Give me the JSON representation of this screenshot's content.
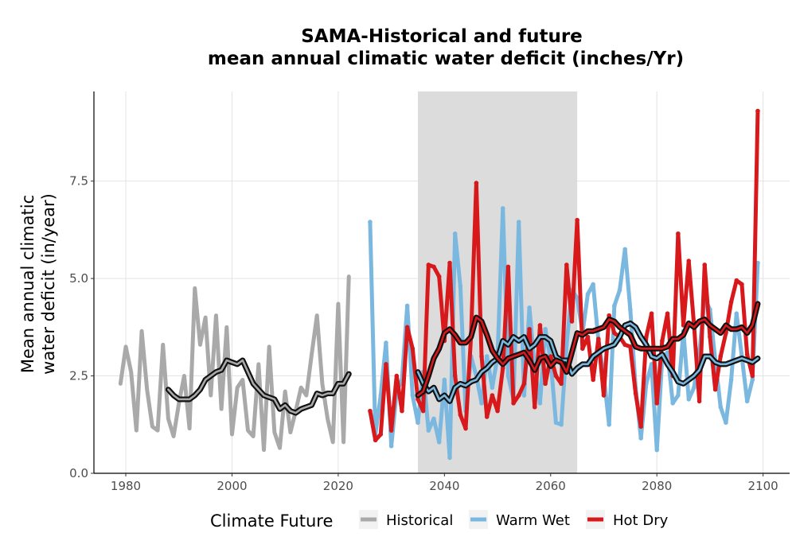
{
  "chart_data": {
    "type": "line",
    "title": [
      "SAMA-Historical and future",
      "mean annual climatic water deficit (inches/Yr)"
    ],
    "xlabel": "",
    "ylabel": [
      "Mean annual climatic",
      "water deficit (in/year)"
    ],
    "xlim": [
      1974,
      2105
    ],
    "ylim": [
      0,
      9.8
    ],
    "xticks": [
      1980,
      2000,
      2020,
      2040,
      2060,
      2080,
      2100
    ],
    "xtick_labels": [
      "1980",
      "2000",
      "2020",
      "2040",
      "2060",
      "2080",
      "2100"
    ],
    "yticks": [
      0,
      2.5,
      5,
      7.5
    ],
    "ytick_labels": [
      "0.0",
      "2.5",
      "5.0",
      "7.5"
    ],
    "grid": true,
    "shaded_band": {
      "x_start": 2035,
      "x_end": 2065,
      "color": "#dcdcdc"
    },
    "legend": {
      "title": "Climate Future",
      "placement": "bottom",
      "entries": [
        {
          "label": "Historical",
          "color": "#a9a9a9"
        },
        {
          "label": "Warm Wet",
          "color": "#7bb8df"
        },
        {
          "label": "Hot Dry",
          "color": "#d7191c"
        }
      ]
    },
    "series": [
      {
        "name": "Historical",
        "color": "#a9a9a9",
        "x": [
          1979,
          1980,
          1981,
          1982,
          1983,
          1984,
          1985,
          1986,
          1987,
          1988,
          1989,
          1990,
          1991,
          1992,
          1993,
          1994,
          1995,
          1996,
          1997,
          1998,
          1999,
          2000,
          2001,
          2002,
          2003,
          2004,
          2005,
          2006,
          2007,
          2008,
          2009,
          2010,
          2011,
          2012,
          2013,
          2014,
          2015,
          2016,
          2017,
          2018,
          2019,
          2020,
          2021,
          2022
        ],
        "values": [
          2.3,
          3.25,
          2.6,
          1.1,
          3.65,
          2.15,
          1.2,
          1.1,
          3.3,
          1.4,
          0.95,
          1.8,
          2.5,
          1.15,
          4.75,
          3.3,
          4.0,
          2.0,
          4.05,
          1.65,
          3.75,
          1.0,
          2.2,
          2.4,
          1.1,
          0.95,
          2.8,
          0.6,
          3.25,
          1.05,
          0.65,
          2.1,
          1.05,
          1.6,
          2.2,
          2.0,
          3.05,
          4.05,
          2.3,
          1.4,
          0.8,
          4.35,
          0.8,
          5.05
        ]
      },
      {
        "name": "Historical moving average",
        "color": "#a9a9a9",
        "x": [
          1988,
          1989,
          1990,
          1991,
          1992,
          1993,
          1994,
          1995,
          1996,
          1997,
          1998,
          1999,
          2000,
          2001,
          2002,
          2003,
          2004,
          2005,
          2006,
          2007,
          2008,
          2009,
          2010,
          2011,
          2012,
          2013,
          2014,
          2015,
          2016,
          2017,
          2018,
          2019,
          2020,
          2021,
          2022
        ],
        "values": [
          2.15,
          2.0,
          1.9,
          1.9,
          1.9,
          2.0,
          2.15,
          2.4,
          2.5,
          2.6,
          2.65,
          2.9,
          2.85,
          2.8,
          2.9,
          2.6,
          2.3,
          2.15,
          2.0,
          1.95,
          1.9,
          1.65,
          1.75,
          1.6,
          1.55,
          1.65,
          1.7,
          1.75,
          2.05,
          2.0,
          2.05,
          2.05,
          2.3,
          2.3,
          2.55
        ]
      },
      {
        "name": "Warm Wet",
        "color": "#7bb8df",
        "x": [
          2026,
          2027,
          2028,
          2029,
          2030,
          2031,
          2032,
          2033,
          2034,
          2035,
          2036,
          2037,
          2038,
          2039,
          2040,
          2041,
          2042,
          2043,
          2044,
          2045,
          2046,
          2047,
          2048,
          2049,
          2050,
          2051,
          2052,
          2053,
          2054,
          2055,
          2056,
          2057,
          2058,
          2059,
          2060,
          2061,
          2062,
          2063,
          2064,
          2065,
          2066,
          2067,
          2068,
          2069,
          2070,
          2071,
          2072,
          2073,
          2074,
          2075,
          2076,
          2077,
          2078,
          2079,
          2080,
          2081,
          2082,
          2083,
          2084,
          2085,
          2086,
          2087,
          2088,
          2089,
          2090,
          2091,
          2092,
          2093,
          2094,
          2095,
          2096,
          2097,
          2098,
          2099
        ],
        "values": [
          6.45,
          1.0,
          2.0,
          3.35,
          0.7,
          2.1,
          2.4,
          4.3,
          2.0,
          1.3,
          2.6,
          1.1,
          1.4,
          0.8,
          2.4,
          0.4,
          6.15,
          4.8,
          1.6,
          3.0,
          2.5,
          1.8,
          3.0,
          2.2,
          3.0,
          6.8,
          2.5,
          1.9,
          6.45,
          2.0,
          4.25,
          2.7,
          1.8,
          3.7,
          2.9,
          1.3,
          1.25,
          3.3,
          4.7,
          4.5,
          3.6,
          4.6,
          4.85,
          3.4,
          2.5,
          1.25,
          4.3,
          4.7,
          5.75,
          4.2,
          2.2,
          0.9,
          2.3,
          2.8,
          0.6,
          2.95,
          3.1,
          1.8,
          2.0,
          3.65,
          1.9,
          2.2,
          3.1,
          4.5,
          4.2,
          2.9,
          1.7,
          1.3,
          2.4,
          4.1,
          3.0,
          1.85,
          2.4,
          5.4
        ]
      },
      {
        "name": "Warm Wet moving average",
        "color": "#7bb8df",
        "x": [
          2035,
          2036,
          2037,
          2038,
          2039,
          2040,
          2041,
          2042,
          2043,
          2044,
          2045,
          2046,
          2047,
          2048,
          2049,
          2050,
          2051,
          2052,
          2053,
          2054,
          2055,
          2056,
          2057,
          2058,
          2059,
          2060,
          2061,
          2062,
          2063,
          2064,
          2065,
          2066,
          2067,
          2068,
          2069,
          2070,
          2071,
          2072,
          2073,
          2074,
          2075,
          2076,
          2077,
          2078,
          2079,
          2080,
          2081,
          2082,
          2083,
          2084,
          2085,
          2086,
          2087,
          2088,
          2089,
          2090,
          2091,
          2092,
          2093,
          2094,
          2095,
          2096,
          2097,
          2098,
          2099
        ],
        "values": [
          2.6,
          2.3,
          2.1,
          2.2,
          1.9,
          2.0,
          1.85,
          2.2,
          2.3,
          2.25,
          2.35,
          2.4,
          2.6,
          2.7,
          2.85,
          2.95,
          3.4,
          3.3,
          3.5,
          3.4,
          3.5,
          3.2,
          3.3,
          3.5,
          3.5,
          3.4,
          3.0,
          2.9,
          2.9,
          2.55,
          2.7,
          2.8,
          2.8,
          3.0,
          3.1,
          3.2,
          3.25,
          3.3,
          3.5,
          3.8,
          3.85,
          3.75,
          3.5,
          3.3,
          3.0,
          2.95,
          3.05,
          2.8,
          2.6,
          2.35,
          2.3,
          2.4,
          2.5,
          2.65,
          3.0,
          3.0,
          2.85,
          2.8,
          2.8,
          2.85,
          2.9,
          2.95,
          2.9,
          2.85,
          2.95
        ]
      },
      {
        "name": "Hot Dry",
        "color": "#d7191c",
        "x": [
          2026,
          2027,
          2028,
          2029,
          2030,
          2031,
          2032,
          2033,
          2034,
          2035,
          2036,
          2037,
          2038,
          2039,
          2040,
          2041,
          2042,
          2043,
          2044,
          2045,
          2046,
          2047,
          2048,
          2049,
          2050,
          2051,
          2052,
          2053,
          2054,
          2055,
          2056,
          2057,
          2058,
          2059,
          2060,
          2061,
          2062,
          2063,
          2064,
          2065,
          2066,
          2067,
          2068,
          2069,
          2070,
          2071,
          2072,
          2073,
          2074,
          2075,
          2076,
          2077,
          2078,
          2079,
          2080,
          2081,
          2082,
          2083,
          2084,
          2085,
          2086,
          2087,
          2088,
          2089,
          2090,
          2091,
          2092,
          2093,
          2094,
          2095,
          2096,
          2097,
          2098,
          2099
        ],
        "values": [
          1.6,
          0.85,
          1.0,
          2.8,
          1.1,
          2.5,
          1.6,
          3.75,
          3.2,
          1.9,
          1.6,
          5.35,
          5.3,
          5.05,
          3.4,
          5.4,
          2.5,
          1.5,
          1.15,
          3.5,
          7.45,
          3.0,
          1.45,
          2.0,
          1.6,
          2.7,
          5.3,
          1.8,
          2.0,
          2.3,
          3.7,
          1.7,
          3.8,
          2.3,
          3.0,
          2.5,
          2.3,
          5.35,
          3.9,
          6.5,
          3.2,
          3.5,
          2.4,
          3.45,
          2.0,
          4.05,
          3.6,
          3.5,
          3.3,
          3.25,
          2.05,
          1.2,
          3.5,
          4.1,
          1.8,
          3.4,
          4.1,
          2.5,
          6.15,
          3.8,
          5.45,
          3.8,
          1.85,
          5.35,
          3.5,
          2.15,
          3.0,
          3.6,
          4.4,
          4.95,
          4.85,
          3.05,
          2.5,
          9.3
        ]
      },
      {
        "name": "Hot Dry moving average",
        "color": "#d7191c",
        "x": [
          2035,
          2036,
          2037,
          2038,
          2039,
          2040,
          2041,
          2042,
          2043,
          2044,
          2045,
          2046,
          2047,
          2048,
          2049,
          2050,
          2051,
          2052,
          2053,
          2054,
          2055,
          2056,
          2057,
          2058,
          2059,
          2060,
          2061,
          2062,
          2063,
          2064,
          2065,
          2066,
          2067,
          2068,
          2069,
          2070,
          2071,
          2072,
          2073,
          2074,
          2075,
          2076,
          2077,
          2078,
          2079,
          2080,
          2081,
          2082,
          2083,
          2084,
          2085,
          2086,
          2087,
          2088,
          2089,
          2090,
          2091,
          2092,
          2093,
          2094,
          2095,
          2096,
          2097,
          2098,
          2099
        ],
        "values": [
          2.0,
          2.1,
          2.5,
          2.95,
          3.2,
          3.6,
          3.7,
          3.55,
          3.35,
          3.35,
          3.5,
          4.0,
          3.9,
          3.55,
          3.15,
          2.95,
          2.8,
          2.95,
          3.0,
          3.05,
          3.1,
          2.9,
          2.65,
          2.95,
          3.0,
          2.75,
          2.9,
          2.85,
          2.6,
          3.1,
          3.6,
          3.55,
          3.65,
          3.65,
          3.7,
          3.75,
          3.95,
          3.9,
          3.75,
          3.65,
          3.55,
          3.25,
          3.2,
          3.2,
          3.2,
          3.2,
          3.2,
          3.25,
          3.45,
          3.45,
          3.55,
          3.85,
          3.75,
          3.9,
          3.95,
          3.8,
          3.7,
          3.6,
          3.8,
          3.7,
          3.7,
          3.75,
          3.6,
          3.8,
          4.35
        ]
      }
    ]
  }
}
